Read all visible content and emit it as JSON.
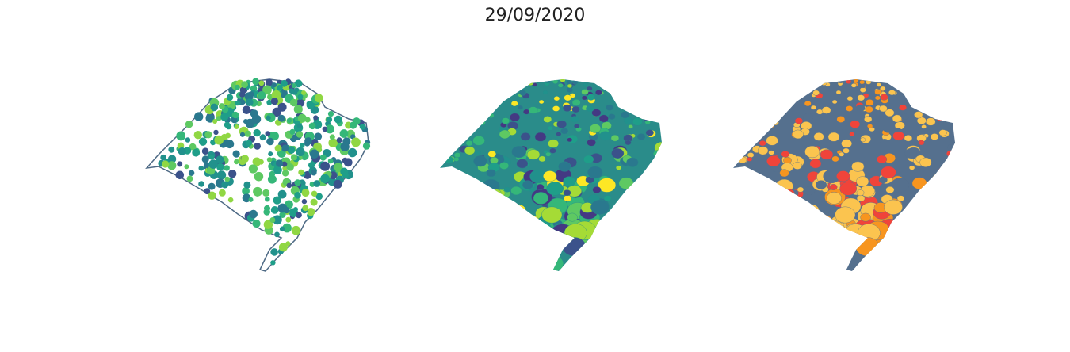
{
  "title": "29/09/2020"
}
